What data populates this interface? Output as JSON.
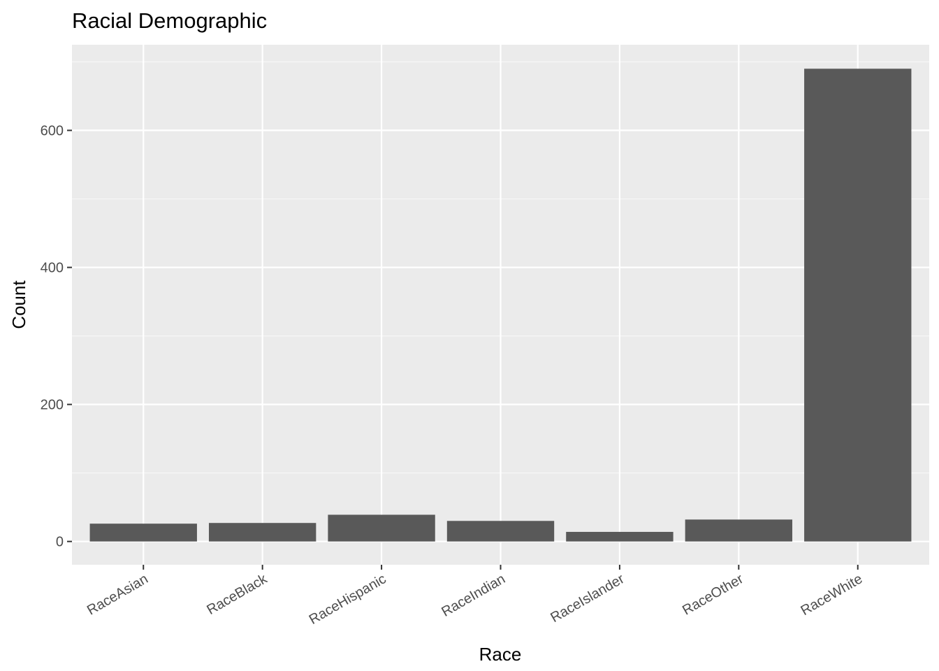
{
  "chart_data": {
    "type": "bar",
    "title": "Racial Demographic",
    "xlabel": "Race",
    "ylabel": "Count",
    "categories": [
      "RaceAsian",
      "RaceBlack",
      "RaceHispanic",
      "RaceIndian",
      "RaceIslander",
      "RaceOther",
      "RaceWhite"
    ],
    "values": [
      26,
      27,
      39,
      30,
      14,
      32,
      690
    ],
    "ylim": [
      -34,
      725
    ],
    "yticks": [
      0,
      200,
      400,
      600
    ],
    "grid": true,
    "legend": "none",
    "colors": {
      "bar": "#595959",
      "panel": "#ebebeb",
      "grid_major": "#ffffff",
      "grid_minor": "#f7f7f7",
      "tick_text": "#4d4d4d"
    }
  }
}
